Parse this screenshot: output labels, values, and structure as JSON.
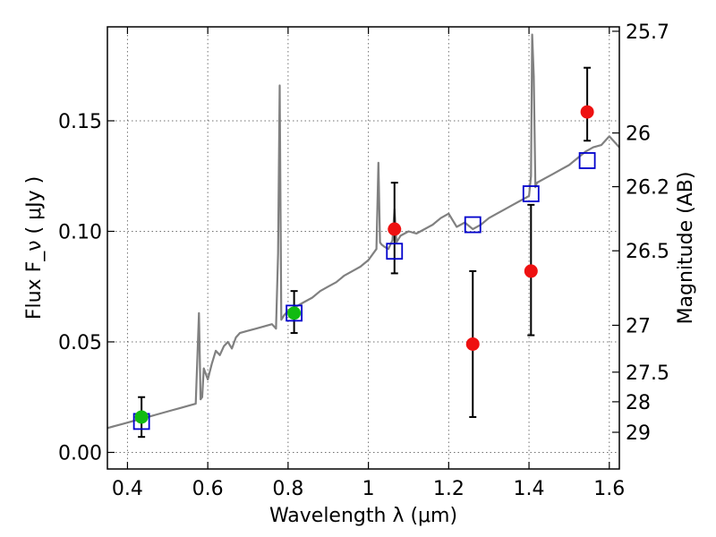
{
  "chart_data": {
    "type": "scatter",
    "xlabel": "Wavelength  λ (μm)",
    "ylabel": "Flux  F_ν  ( μJy )",
    "ylabel_right": "Magnitude (AB)",
    "xlim": [
      0.35,
      1.625
    ],
    "ylim": [
      -0.0075,
      0.1925
    ],
    "x_ticks": [
      0.4,
      0.6,
      0.8,
      1.0,
      1.2,
      1.4,
      1.6
    ],
    "x_tick_labels": [
      "0.4",
      "0.6",
      "0.8",
      "1",
      "1.2",
      "1.4",
      "1.6"
    ],
    "y_ticks": [
      0.0,
      0.05,
      0.1,
      0.15
    ],
    "y_tick_labels": [
      "0.00",
      "0.05",
      "0.10",
      "0.15"
    ],
    "mag_ticks": [
      {
        "label": "25.7",
        "flux": 0.1905
      },
      {
        "label": "26",
        "flux": 0.1445
      },
      {
        "label": "26.2",
        "flux": 0.1202
      },
      {
        "label": "26.5",
        "flux": 0.0912
      },
      {
        "label": "27",
        "flux": 0.0575
      },
      {
        "label": "27.5",
        "flux": 0.0363
      },
      {
        "label": "28",
        "flux": 0.0229
      },
      {
        "label": "29",
        "flux": 0.0091
      }
    ],
    "grid": true,
    "colors": {
      "spectrum": "#808080",
      "model_squares": "#0000cc",
      "red_points": "#ee1111",
      "green_points": "#11bb11",
      "errorbars": "#000000"
    },
    "series": [
      {
        "kind": "line",
        "x": [
          0.35,
          0.37,
          0.39,
          0.41,
          0.43,
          0.45,
          0.47,
          0.49,
          0.51,
          0.53,
          0.55,
          0.57,
          0.578,
          0.582,
          0.586,
          0.59,
          0.6,
          0.61,
          0.62,
          0.63,
          0.64,
          0.65,
          0.66,
          0.67,
          0.68,
          0.7,
          0.72,
          0.74,
          0.76,
          0.77,
          0.775,
          0.779,
          0.783,
          0.79,
          0.8,
          0.82,
          0.84,
          0.86,
          0.88,
          0.9,
          0.92,
          0.94,
          0.96,
          0.98,
          1.0,
          1.02,
          1.025,
          1.029,
          1.033,
          1.04,
          1.05,
          1.06,
          1.065,
          1.07,
          1.08,
          1.1,
          1.12,
          1.14,
          1.16,
          1.18,
          1.2,
          1.22,
          1.24,
          1.26,
          1.28,
          1.3,
          1.32,
          1.34,
          1.36,
          1.38,
          1.4,
          1.405,
          1.408,
          1.412,
          1.416,
          1.42,
          1.44,
          1.46,
          1.48,
          1.5,
          1.52,
          1.54,
          1.56,
          1.58,
          1.6,
          1.625
        ],
        "y": [
          0.011,
          0.012,
          0.013,
          0.014,
          0.015,
          0.016,
          0.017,
          0.018,
          0.019,
          0.02,
          0.021,
          0.022,
          0.063,
          0.024,
          0.025,
          0.038,
          0.033,
          0.04,
          0.046,
          0.044,
          0.048,
          0.05,
          0.047,
          0.052,
          0.054,
          0.055,
          0.056,
          0.057,
          0.058,
          0.056,
          0.09,
          0.166,
          0.06,
          0.062,
          0.064,
          0.066,
          0.068,
          0.07,
          0.073,
          0.075,
          0.077,
          0.08,
          0.082,
          0.084,
          0.087,
          0.092,
          0.131,
          0.095,
          0.094,
          0.093,
          0.092,
          0.096,
          0.11,
          0.095,
          0.098,
          0.1,
          0.099,
          0.101,
          0.103,
          0.106,
          0.108,
          0.102,
          0.104,
          0.101,
          0.103,
          0.106,
          0.108,
          0.11,
          0.112,
          0.114,
          0.116,
          0.125,
          0.189,
          0.17,
          0.12,
          0.122,
          0.124,
          0.126,
          0.128,
          0.13,
          0.133,
          0.136,
          0.138,
          0.139,
          0.143,
          0.138
        ]
      },
      {
        "kind": "squares",
        "x": [
          0.435,
          0.815,
          1.065,
          1.26,
          1.405,
          1.545
        ],
        "y": [
          0.014,
          0.063,
          0.091,
          0.103,
          0.117,
          0.132
        ]
      },
      {
        "kind": "points-red",
        "x": [
          1.065,
          1.26,
          1.405,
          1.545
        ],
        "y": [
          0.101,
          0.049,
          0.082,
          0.154
        ],
        "yerr_low": [
          0.081,
          0.016,
          0.053,
          0.141
        ],
        "yerr_high": [
          0.122,
          0.082,
          0.112,
          0.174
        ]
      },
      {
        "kind": "points-green",
        "x": [
          0.435,
          0.815
        ],
        "y": [
          0.016,
          0.063
        ],
        "yerr_low": [
          0.007,
          0.054
        ],
        "yerr_high": [
          0.025,
          0.073
        ]
      }
    ]
  }
}
